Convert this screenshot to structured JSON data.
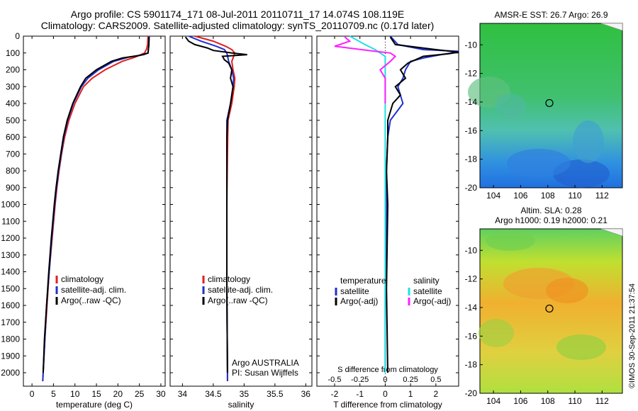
{
  "title": {
    "line1": "Argo profile: CS 5901174_171 08-Jul-2011 20110711_17 14.074S 108.119E",
    "line2": "Climatology: CARS2009. Satellite-adjusted climatology: synTS_20110709.nc (0.17d later)"
  },
  "colors": {
    "climatology": "#e02020",
    "satellite": "#2030d0",
    "argo": "#000000",
    "s_satellite": "#20e0e0",
    "s_argo": "#ff20ff"
  },
  "side_label": "©IMOS 30-Sep-2011 21:37:54",
  "chart_data": [
    {
      "type": "line",
      "name": "temperature",
      "xlabel": "temperature (deg C)",
      "xlim": [
        -2,
        31
      ],
      "xticks": [
        0,
        5,
        10,
        15,
        20,
        25,
        30
      ],
      "ylim": [
        2080,
        0
      ],
      "yticks": [
        0,
        100,
        200,
        300,
        400,
        500,
        600,
        700,
        800,
        900,
        1000,
        1100,
        1200,
        1300,
        1400,
        1500,
        1600,
        1700,
        1800,
        1900,
        2000
      ],
      "legend": [
        "climatology",
        "satellite-adj. clim.",
        "Argo(..raw -QC)"
      ],
      "series": [
        {
          "role": "climatology",
          "depth": [
            0,
            50,
            75,
            100,
            125,
            150,
            200,
            250,
            300,
            400,
            500,
            600,
            700,
            800,
            900,
            1000,
            1200,
            1400,
            1600,
            1800,
            2000,
            2050
          ],
          "values": [
            27.0,
            26.9,
            26.7,
            26.2,
            24.0,
            21.0,
            17.0,
            14.0,
            12.0,
            10.0,
            8.6,
            7.6,
            6.9,
            6.3,
            5.8,
            5.4,
            4.7,
            4.0,
            3.5,
            3.0,
            2.6,
            2.5
          ]
        },
        {
          "role": "satellite",
          "depth": [
            0,
            50,
            100,
            110,
            125,
            150,
            200,
            250,
            300,
            400,
            500,
            600,
            700,
            800,
            900,
            1000,
            1200,
            1400,
            1600,
            1800,
            2000,
            2050
          ],
          "values": [
            27.3,
            27.2,
            27.0,
            26.0,
            22.5,
            19.0,
            15.5,
            13.0,
            11.5,
            9.6,
            8.3,
            7.4,
            6.8,
            6.2,
            5.7,
            5.3,
            4.6,
            4.0,
            3.4,
            3.0,
            2.6,
            2.5
          ]
        },
        {
          "role": "argo",
          "depth": [
            5,
            50,
            100,
            115,
            130,
            150,
            200,
            250,
            300,
            400,
            500,
            600,
            700,
            800,
            900,
            1000,
            1200,
            1400,
            1600,
            1800,
            2000
          ],
          "values": [
            27.2,
            27.2,
            27.0,
            25.0,
            21.0,
            18.5,
            15.0,
            12.5,
            11.3,
            9.5,
            8.2,
            7.3,
            6.7,
            6.1,
            5.6,
            5.2,
            4.5,
            3.9,
            3.4,
            2.9,
            2.6
          ]
        }
      ]
    },
    {
      "type": "line",
      "name": "salinity",
      "xlabel": "salinity",
      "xlim": [
        33.8,
        36.1
      ],
      "xticks": [
        34,
        34.5,
        35,
        35.5,
        36
      ],
      "ylim": [
        2080,
        0
      ],
      "legend": [
        "climatology",
        "satellite-adj. clim.",
        "Argo(..raw -QC)"
      ],
      "annotation": [
        "Argo AUSTRALIA",
        "PI: Susan Wijffels"
      ],
      "series": [
        {
          "role": "climatology",
          "depth": [
            0,
            30,
            60,
            80,
            100,
            150,
            200,
            250,
            300,
            400,
            500,
            700,
            1000,
            1500,
            2000,
            2050
          ],
          "values": [
            34.2,
            34.5,
            34.7,
            34.8,
            34.85,
            34.8,
            34.82,
            34.85,
            34.84,
            34.8,
            34.74,
            34.73,
            34.72,
            34.72,
            34.73,
            34.73
          ]
        },
        {
          "role": "satellite",
          "depth": [
            0,
            30,
            60,
            80,
            100,
            150,
            200,
            250,
            300,
            400,
            500,
            700,
            1000,
            1500,
            2000,
            2050
          ],
          "values": [
            34.1,
            34.3,
            34.55,
            34.68,
            34.72,
            34.75,
            34.8,
            34.83,
            34.82,
            34.78,
            34.72,
            34.72,
            34.72,
            34.72,
            34.73,
            34.73
          ]
        },
        {
          "role": "argo",
          "depth": [
            5,
            30,
            50,
            70,
            85,
            100,
            110,
            120,
            140,
            160,
            200,
            250,
            300,
            400,
            500,
            600,
            800,
            1000,
            1500,
            2000
          ],
          "values": [
            34.05,
            34.1,
            34.2,
            34.4,
            34.5,
            34.8,
            35.05,
            34.65,
            34.68,
            34.75,
            34.8,
            34.78,
            34.82,
            34.78,
            34.73,
            34.72,
            34.72,
            34.72,
            34.72,
            34.73
          ]
        }
      ]
    },
    {
      "type": "line",
      "name": "difference",
      "xlabel": "T difference from climatology",
      "xlim": [
        -2.7,
        2.9
      ],
      "xticks": [
        -2,
        -1,
        0,
        1,
        2
      ],
      "top_axis_label": "S difference from climatology",
      "top_xticks": [
        "-0.5",
        "-0.25",
        "0",
        "0.25",
        "0.5"
      ],
      "ylim": [
        2080,
        0
      ],
      "legend_left_title": "temperature",
      "legend_right_title": "salinity",
      "legend_left": [
        "satellite",
        "Argo(-adj)"
      ],
      "legend_right": [
        "satellite",
        "Argo(-adj)"
      ],
      "series": [
        {
          "role": "T satellite",
          "depth": [
            0,
            50,
            80,
            90,
            100,
            110,
            130,
            150,
            200,
            250,
            300,
            400,
            500,
            600,
            800,
            1000,
            1500,
            2000
          ],
          "values": [
            0.2,
            0.5,
            1.5,
            2.9,
            2.6,
            2.2,
            1.5,
            1.0,
            0.8,
            0.7,
            0.5,
            0.7,
            0.2,
            0.1,
            0.05,
            0.05,
            0.0,
            0.0
          ]
        },
        {
          "role": "T argo",
          "depth": [
            5,
            50,
            80,
            95,
            105,
            120,
            140,
            160,
            200,
            250,
            300,
            350,
            400,
            500,
            600,
            800,
            1000,
            1500,
            2000
          ],
          "values": [
            0.2,
            0.4,
            2.0,
            2.9,
            2.5,
            1.5,
            1.2,
            0.9,
            0.6,
            0.8,
            0.4,
            0.6,
            0.3,
            0.1,
            0.1,
            0.05,
            0.1,
            0.05,
            0.1
          ]
        },
        {
          "role": "S satellite",
          "depth": [
            0,
            50,
            80,
            100,
            120,
            150,
            200,
            250,
            300,
            400,
            500,
            700,
            1000,
            1500,
            2000
          ],
          "values": [
            -0.35,
            -0.2,
            -0.1,
            -0.05,
            0.0,
            0.0,
            0.0,
            0.0,
            0.0,
            0.0,
            0.0,
            0.0,
            0.0,
            0.0,
            0.0
          ]
        },
        {
          "role": "S argo",
          "depth": [
            5,
            30,
            60,
            90,
            100,
            120,
            150,
            200,
            250,
            300,
            350,
            400
          ],
          "values": [
            -0.4,
            -0.35,
            -0.5,
            -0.1,
            0.05,
            0.1,
            0.05,
            -0.05,
            0.0,
            0.0,
            0.0,
            0.0
          ]
        }
      ]
    },
    {
      "type": "heatmap",
      "name": "sst-map",
      "title": "AMSR-E SST: 26.7 Argo: 26.9",
      "xlim": [
        103,
        113.5
      ],
      "ylim": [
        -20,
        -8.5
      ],
      "xticks": [
        104,
        106,
        108,
        110,
        112
      ],
      "yticks": [
        -20,
        -18,
        -16,
        -14,
        -12,
        -10
      ],
      "marker": {
        "lon": 108.119,
        "lat": -14.074
      }
    },
    {
      "type": "heatmap",
      "name": "sla-map",
      "title": [
        "Altim. SLA: 0.28",
        "Argo h1000: 0.19 h2000: 0.21"
      ],
      "xlim": [
        103,
        113.5
      ],
      "ylim": [
        -20,
        -8.5
      ],
      "xticks": [
        104,
        106,
        108,
        110,
        112
      ],
      "yticks": [
        -20,
        -18,
        -16,
        -14,
        -12,
        -10
      ],
      "marker": {
        "lon": 108.119,
        "lat": -14.074
      }
    }
  ]
}
